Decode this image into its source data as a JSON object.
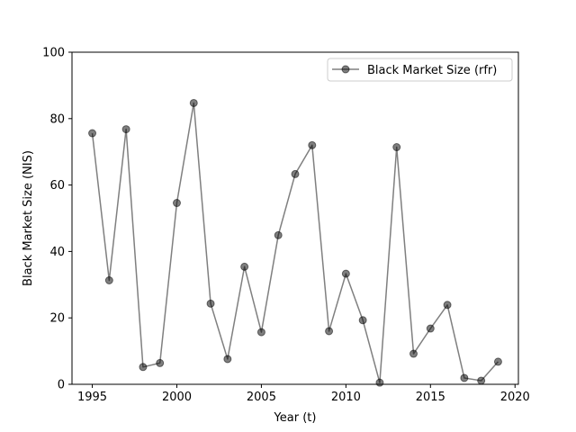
{
  "chart_data": {
    "type": "line",
    "xlabel": "Year (t)",
    "ylabel": "Black Market Size (NIS)",
    "xlim": [
      1993.8,
      2020.2
    ],
    "ylim": [
      0,
      100
    ],
    "xticks": [
      1995,
      2000,
      2005,
      2010,
      2015,
      2020
    ],
    "yticks": [
      0,
      20,
      40,
      60,
      80,
      100
    ],
    "grid": false,
    "legend_position": "top-right",
    "series": [
      {
        "name": "Black Market Size (rfr)",
        "color": "#000000",
        "marker": "circle",
        "x": [
          1995,
          1996,
          1997,
          1998,
          1999,
          2000,
          2001,
          2002,
          2003,
          2004,
          2005,
          2006,
          2007,
          2008,
          2009,
          2010,
          2011,
          2012,
          2013,
          2014,
          2015,
          2016,
          2017,
          2018,
          2019
        ],
        "y": [
          75.6,
          31.3,
          76.8,
          5.2,
          6.4,
          54.6,
          84.7,
          24.3,
          7.6,
          35.4,
          15.7,
          44.9,
          63.3,
          72.0,
          16.0,
          33.3,
          19.3,
          0.5,
          71.4,
          9.2,
          16.8,
          23.9,
          1.9,
          1.1,
          6.8
        ]
      }
    ]
  }
}
